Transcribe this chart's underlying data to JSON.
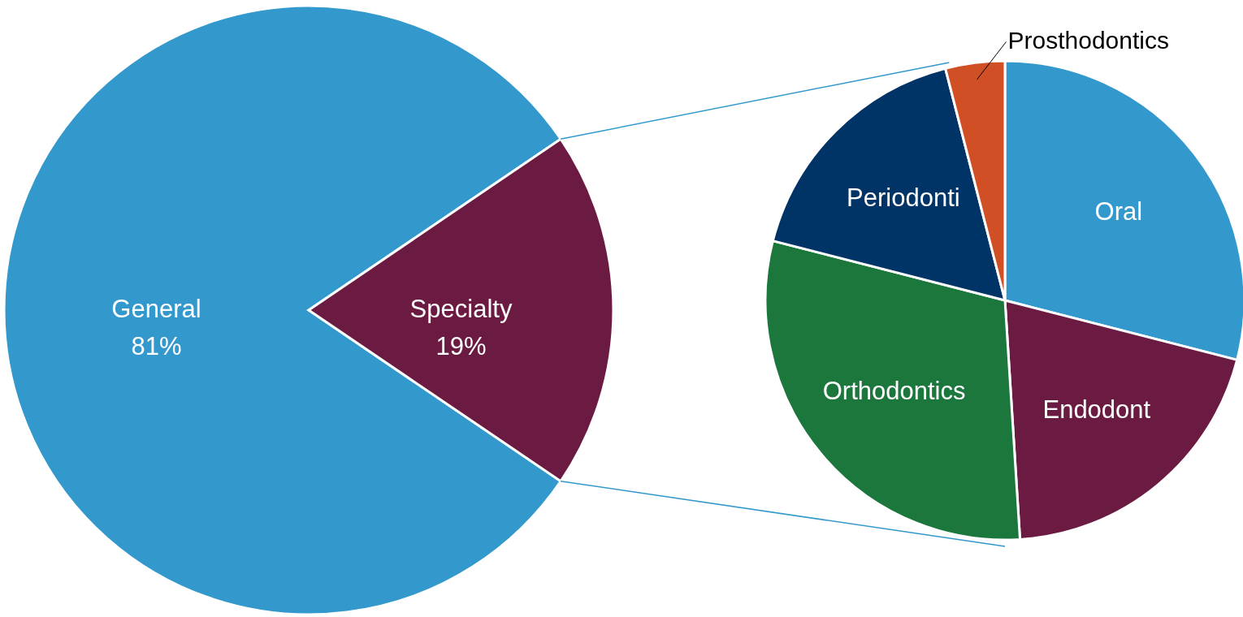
{
  "chart_data": [
    {
      "type": "pie",
      "categories": [
        "General",
        "Specialty"
      ],
      "values": [
        81,
        19
      ],
      "colors": [
        "#3399cc",
        "#6b1a42"
      ],
      "value_labels": [
        "81%",
        "19%"
      ]
    },
    {
      "type": "pie",
      "categories": [
        "Oral",
        "Endodont",
        "Orthodontics",
        "Periodonti",
        "Prosthodontics"
      ],
      "values": [
        29,
        20,
        30,
        17,
        4
      ],
      "colors": [
        "#3399cc",
        "#6b1a42",
        "#1b773c",
        "#003366",
        "#d04f25"
      ]
    }
  ]
}
